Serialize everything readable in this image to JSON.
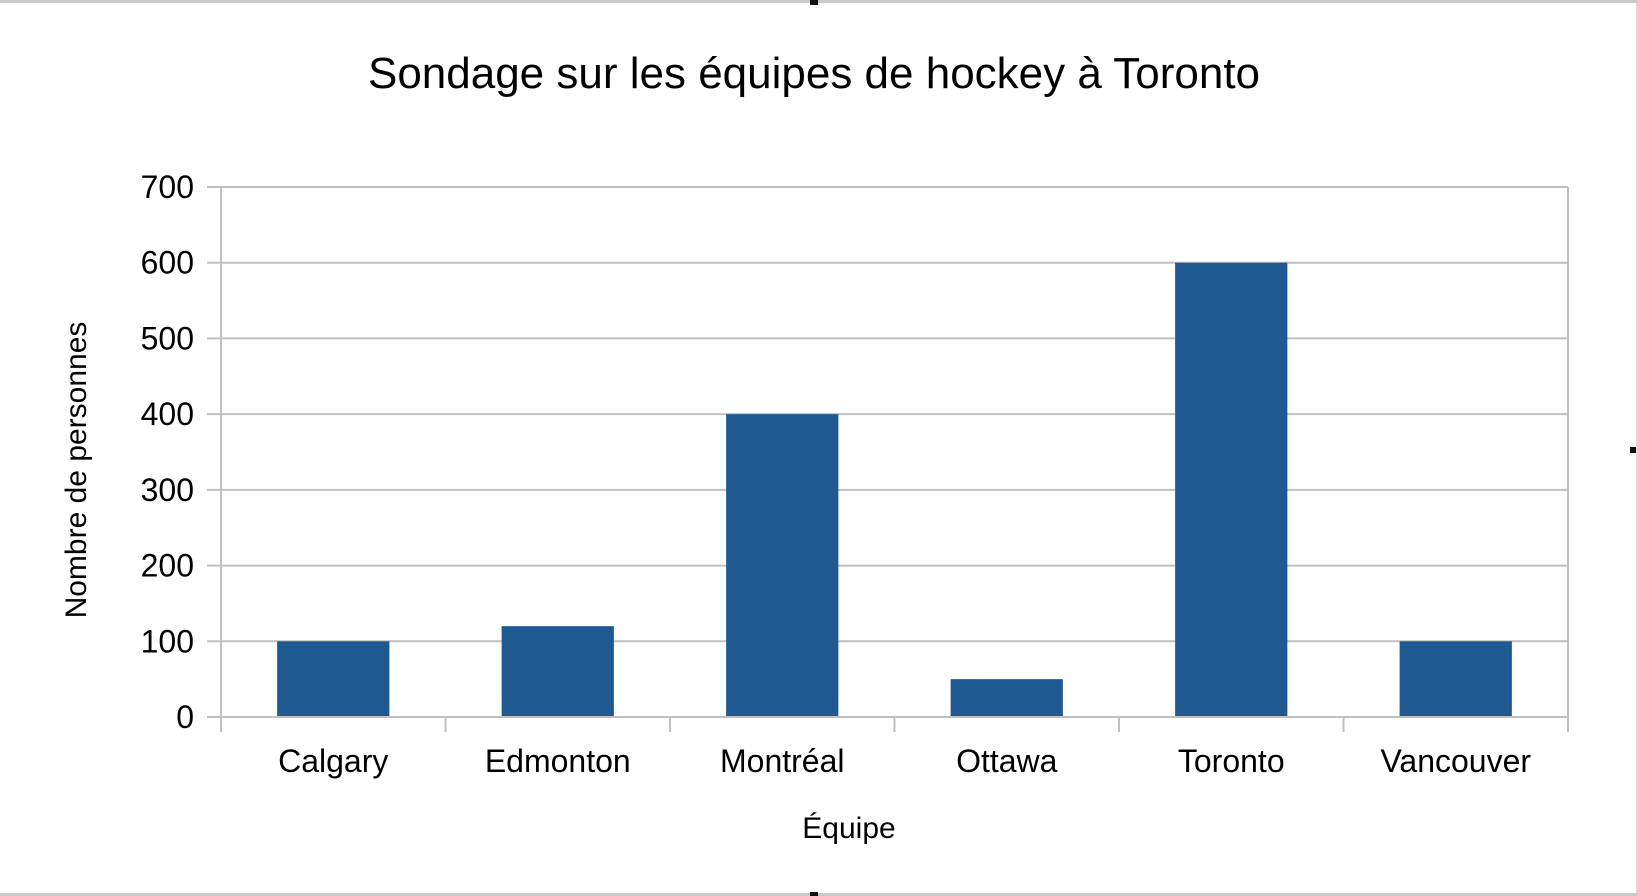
{
  "chart_data": {
    "type": "bar",
    "title": "Sondage sur les équipes de hockey à Toronto",
    "xlabel": "Équipe",
    "ylabel": "Nombre de personnes",
    "categories": [
      "Calgary",
      "Edmonton",
      "Montréal",
      "Ottawa",
      "Toronto",
      "Vancouver"
    ],
    "values": [
      100,
      120,
      400,
      50,
      600,
      100
    ],
    "ylim": [
      0,
      700
    ],
    "yticks": [
      0,
      100,
      200,
      300,
      400,
      500,
      600,
      700
    ],
    "grid": true,
    "legend": "none",
    "bar_color": "#1f5992",
    "grid_color": "#c0c0c0"
  }
}
